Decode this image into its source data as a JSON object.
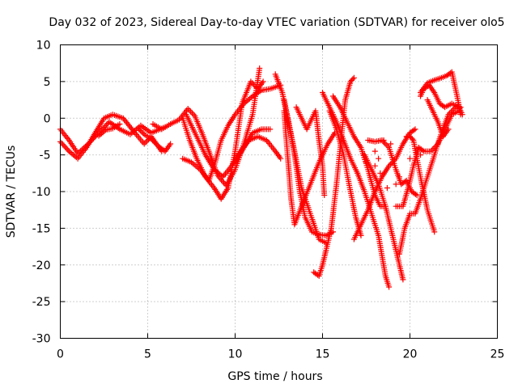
{
  "chart_data": {
    "type": "scatter",
    "title": "Day 032 of 2023, Sidereal Day-to-day VTEC variation (SDTVAR) for receiver olo5",
    "xlabel": "GPS time / hours",
    "ylabel": "SDTVAR / TECUs",
    "xlim": [
      0,
      25
    ],
    "ylim": [
      -30,
      10
    ],
    "x_ticks": [
      "0",
      "5",
      "10",
      "15",
      "20",
      "25"
    ],
    "y_ticks": [
      "10",
      "5",
      "0",
      "-5",
      "-10",
      "-15",
      "-20",
      "-25",
      "-30"
    ],
    "grid": true,
    "marker": "+",
    "color": "#ff0000",
    "tracks": [
      [
        [
          0.0,
          -1.5
        ],
        [
          0.5,
          -3.0
        ],
        [
          1.0,
          -4.8
        ],
        [
          1.6,
          -3.5
        ],
        [
          2.2,
          -2.0
        ],
        [
          2.8,
          -0.5
        ],
        [
          3.4,
          -1.5
        ],
        [
          4.0,
          -2.2
        ],
        [
          4.6,
          -1.0
        ],
        [
          5.2,
          -2.0
        ],
        [
          6.0,
          -1.2
        ]
      ],
      [
        [
          0.0,
          -3.2
        ],
        [
          0.5,
          -4.5
        ],
        [
          1.0,
          -5.5
        ],
        [
          1.5,
          -4.0
        ],
        [
          2.0,
          -2.0
        ],
        [
          2.5,
          0.0
        ],
        [
          3.0,
          0.5
        ],
        [
          3.6,
          0.0
        ],
        [
          4.2,
          -1.8
        ],
        [
          4.8,
          -3.5
        ],
        [
          5.2,
          -2.5
        ],
        [
          5.8,
          -4.5
        ]
      ],
      [
        [
          5.3,
          -0.8
        ],
        [
          5.8,
          -1.5
        ],
        [
          6.3,
          -0.8
        ],
        [
          6.8,
          -0.2
        ],
        [
          7.3,
          1.3
        ],
        [
          7.7,
          0.3
        ],
        [
          8.1,
          -2.0
        ],
        [
          8.5,
          -4.5
        ],
        [
          9.0,
          -7.8
        ],
        [
          9.5,
          -9.2
        ],
        [
          10.0,
          -7.0
        ],
        [
          10.5,
          -3.5
        ],
        [
          11.0,
          0.5
        ],
        [
          11.4,
          6.8
        ]
      ],
      [
        [
          7.0,
          0.0
        ],
        [
          7.4,
          -3.0
        ],
        [
          7.8,
          -5.5
        ],
        [
          8.3,
          -8.0
        ],
        [
          8.8,
          -9.5
        ],
        [
          9.2,
          -11.0
        ],
        [
          9.6,
          -9.5
        ],
        [
          10.0,
          -4.5
        ],
        [
          10.4,
          2.0
        ],
        [
          10.9,
          5.0
        ],
        [
          11.3,
          4.0
        ],
        [
          11.6,
          5.0
        ]
      ],
      [
        [
          7.0,
          -5.5
        ],
        [
          7.5,
          -6.0
        ],
        [
          8.0,
          -7.0
        ],
        [
          8.5,
          -8.5
        ],
        [
          8.8,
          -6.5
        ],
        [
          9.2,
          -3.0
        ],
        [
          9.6,
          -1.0
        ],
        [
          10.0,
          0.5
        ],
        [
          10.5,
          2.0
        ],
        [
          11.0,
          3.0
        ],
        [
          11.5,
          3.8
        ],
        [
          12.0,
          4.0
        ],
        [
          12.6,
          4.5
        ]
      ],
      [
        [
          7.2,
          0.5
        ],
        [
          7.8,
          -2.5
        ],
        [
          8.3,
          -5.0
        ],
        [
          8.8,
          -7.0
        ],
        [
          9.3,
          -8.0
        ],
        [
          9.8,
          -6.5
        ],
        [
          10.3,
          -4.5
        ],
        [
          10.8,
          -3.0
        ],
        [
          11.3,
          -2.5
        ],
        [
          11.8,
          -3.0
        ],
        [
          12.3,
          -4.5
        ],
        [
          12.6,
          -5.5
        ]
      ],
      [
        [
          10.0,
          -6.0
        ],
        [
          10.5,
          -4.0
        ],
        [
          11.0,
          -2.0
        ],
        [
          11.5,
          -1.5
        ],
        [
          12.0,
          -1.5
        ]
      ],
      [
        [
          12.3,
          6.0
        ],
        [
          12.7,
          3.5
        ],
        [
          13.0,
          0.0
        ],
        [
          13.4,
          -4.5
        ],
        [
          13.8,
          -9.5
        ],
        [
          14.3,
          -13.0
        ],
        [
          14.8,
          -16.5
        ],
        [
          15.2,
          -17.0
        ]
      ],
      [
        [
          12.8,
          2.5
        ],
        [
          13.1,
          -1.0
        ],
        [
          13.4,
          -5.0
        ],
        [
          13.7,
          -10.0
        ],
        [
          14.0,
          -13.5
        ],
        [
          14.4,
          -15.5
        ],
        [
          14.7,
          -15.8
        ],
        [
          15.2,
          -16.0
        ],
        [
          15.6,
          -15.5
        ]
      ],
      [
        [
          12.8,
          1.0
        ],
        [
          13.0,
          -5.0
        ],
        [
          13.2,
          -11.0
        ],
        [
          13.4,
          -14.5
        ],
        [
          13.8,
          -12.0
        ],
        [
          14.3,
          -9.0
        ],
        [
          14.8,
          -6.0
        ],
        [
          15.3,
          -3.5
        ],
        [
          15.7,
          -2.0
        ]
      ],
      [
        [
          13.5,
          1.5
        ],
        [
          13.8,
          0.0
        ],
        [
          14.1,
          -1.5
        ],
        [
          14.3,
          -0.5
        ],
        [
          14.6,
          1.0
        ],
        [
          14.8,
          -3.0
        ],
        [
          15.0,
          -6.5
        ],
        [
          15.1,
          -10.5
        ]
      ],
      [
        [
          14.5,
          -21.0
        ],
        [
          14.8,
          -21.5
        ],
        [
          15.0,
          -20.0
        ],
        [
          15.2,
          -18.0
        ],
        [
          15.5,
          -15.0
        ],
        [
          15.8,
          -9.0
        ],
        [
          16.1,
          -2.0
        ],
        [
          16.3,
          2.5
        ],
        [
          16.6,
          5.0
        ],
        [
          16.8,
          5.5
        ]
      ],
      [
        [
          15.0,
          3.5
        ],
        [
          15.4,
          1.5
        ],
        [
          15.8,
          -0.5
        ],
        [
          16.2,
          -3.0
        ],
        [
          16.6,
          -5.5
        ],
        [
          17.0,
          -7.5
        ],
        [
          17.4,
          -10.0
        ],
        [
          17.8,
          -13.0
        ],
        [
          18.2,
          -16.0
        ],
        [
          18.6,
          -21.5
        ],
        [
          18.8,
          -23.0
        ]
      ],
      [
        [
          15.4,
          1.0
        ],
        [
          15.8,
          -1.5
        ],
        [
          16.2,
          -5.0
        ],
        [
          16.6,
          -10.0
        ],
        [
          16.9,
          -13.5
        ],
        [
          17.2,
          -16.0
        ]
      ],
      [
        [
          15.6,
          3.0
        ],
        [
          16.0,
          1.5
        ],
        [
          16.4,
          -0.5
        ],
        [
          16.8,
          -2.5
        ],
        [
          17.2,
          -4.0
        ],
        [
          17.6,
          -7.0
        ],
        [
          18.0,
          -10.5
        ],
        [
          18.3,
          -12.0
        ],
        [
          18.6,
          -12.0
        ]
      ],
      [
        [
          16.8,
          -16.5
        ],
        [
          17.2,
          -14.5
        ],
        [
          17.6,
          -12.5
        ],
        [
          18.0,
          -10.0
        ],
        [
          18.4,
          -8.0
        ],
        [
          18.8,
          -6.5
        ],
        [
          19.2,
          -5.5
        ],
        [
          19.6,
          -3.5
        ],
        [
          20.0,
          -2.0
        ],
        [
          20.3,
          -1.5
        ]
      ],
      [
        [
          17.4,
          -5.0
        ],
        [
          17.8,
          -7.0
        ],
        [
          18.2,
          -9.0
        ],
        [
          18.6,
          -12.0
        ],
        [
          19.0,
          -16.0
        ],
        [
          19.4,
          -20.0
        ],
        [
          19.6,
          -22.0
        ]
      ],
      [
        [
          17.6,
          -3.0
        ],
        [
          18.0,
          -3.2
        ],
        [
          18.4,
          -3.0
        ],
        [
          18.8,
          -4.0
        ],
        [
          19.2,
          -7.0
        ],
        [
          19.5,
          -9.0
        ],
        [
          19.8,
          -8.5
        ],
        [
          20.1,
          -10.0
        ],
        [
          20.4,
          -10.5
        ]
      ],
      [
        [
          19.2,
          -12.0
        ],
        [
          19.6,
          -12.0
        ],
        [
          19.9,
          -9.5
        ],
        [
          20.2,
          -6.5
        ],
        [
          20.5,
          -4.0
        ],
        [
          20.8,
          -4.5
        ],
        [
          21.2,
          -4.5
        ],
        [
          21.6,
          -3.5
        ],
        [
          22.0,
          -1.5
        ],
        [
          22.4,
          0.5
        ],
        [
          22.8,
          1.0
        ]
      ],
      [
        [
          19.4,
          -18.5
        ],
        [
          19.7,
          -15.0
        ],
        [
          20.0,
          -13.0
        ],
        [
          20.3,
          -13.0
        ],
        [
          20.6,
          -11.0
        ],
        [
          21.0,
          -8.0
        ],
        [
          21.4,
          -5.0
        ],
        [
          21.8,
          -2.0
        ],
        [
          22.2,
          0.5
        ],
        [
          22.6,
          1.5
        ],
        [
          22.9,
          1.5
        ]
      ],
      [
        [
          20.0,
          -2.5
        ],
        [
          20.2,
          -3.0
        ],
        [
          20.6,
          -8.0
        ],
        [
          21.0,
          -12.5
        ],
        [
          21.4,
          -15.5
        ]
      ],
      [
        [
          20.6,
          3.0
        ],
        [
          20.8,
          4.0
        ],
        [
          21.1,
          4.5
        ],
        [
          21.4,
          3.5
        ],
        [
          21.7,
          2.0
        ],
        [
          22.0,
          1.5
        ],
        [
          22.4,
          2.0
        ],
        [
          22.8,
          1.5
        ],
        [
          23.0,
          0.5
        ]
      ],
      [
        [
          20.6,
          3.5
        ],
        [
          21.0,
          4.8
        ],
        [
          21.4,
          5.2
        ],
        [
          21.8,
          5.5
        ],
        [
          22.1,
          5.8
        ],
        [
          22.4,
          6.3
        ],
        [
          22.7,
          3.0
        ],
        [
          22.9,
          0.5
        ]
      ],
      [
        [
          21.0,
          2.5
        ],
        [
          21.3,
          1.0
        ],
        [
          21.6,
          -0.5
        ],
        [
          21.9,
          -2.5
        ],
        [
          22.2,
          -1.5
        ]
      ],
      [
        [
          2.2,
          -2.4
        ],
        [
          2.6,
          -1.6
        ],
        [
          3.0,
          -1.4
        ],
        [
          3.4,
          -0.8
        ]
      ],
      [
        [
          5.7,
          -4.0
        ],
        [
          6.0,
          -4.5
        ],
        [
          6.3,
          -3.5
        ]
      ],
      [
        [
          4.5,
          -1.5
        ],
        [
          4.8,
          -2.2
        ],
        [
          5.2,
          -2.8
        ],
        [
          5.6,
          -3.8
        ]
      ]
    ],
    "scattered_points": [
      [
        18.0,
        -4.5
      ],
      [
        18.2,
        -5.5
      ],
      [
        18.3,
        -7.5
      ],
      [
        18.5,
        -3.0
      ],
      [
        18.9,
        -3.5
      ],
      [
        18.7,
        -9.5
      ],
      [
        19.2,
        -9.0
      ],
      [
        19.8,
        -2.5
      ],
      [
        20.0,
        -5.5
      ],
      [
        20.6,
        -5.0
      ],
      [
        19.4,
        -8.0
      ],
      [
        18.0,
        -6.5
      ],
      [
        17.0,
        -7.5
      ],
      [
        17.5,
        -6.0
      ]
    ]
  }
}
